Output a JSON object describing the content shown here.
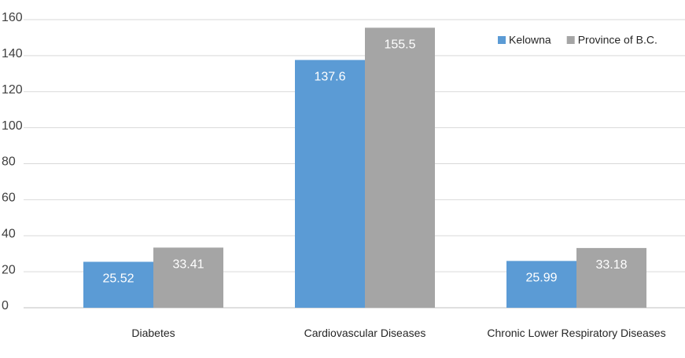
{
  "chart_data": {
    "type": "bar",
    "categories": [
      "Diabetes",
      "Cardiovascular Diseases",
      "Chronic Lower Respiratory Diseases"
    ],
    "series": [
      {
        "name": "Kelowna",
        "color": "#5b9bd5",
        "values": [
          25.52,
          137.6,
          25.99
        ]
      },
      {
        "name": "Province of B.C.",
        "color": "#a5a5a5",
        "values": [
          33.41,
          155.5,
          33.18
        ]
      }
    ],
    "ylim": [
      0,
      160
    ],
    "yticks": [
      0,
      20,
      40,
      60,
      80,
      100,
      120,
      140,
      160
    ],
    "grid": true,
    "legend": "top-right"
  }
}
